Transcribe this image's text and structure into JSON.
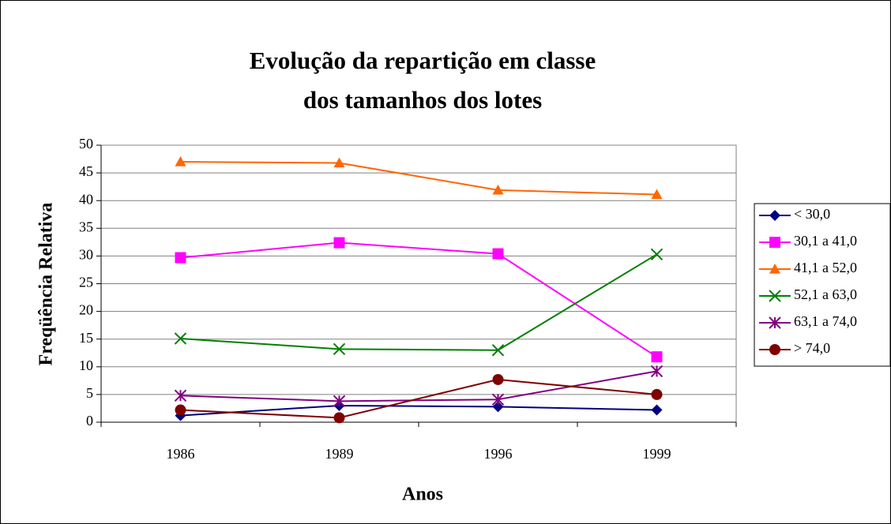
{
  "chart_data": {
    "type": "line",
    "title": [
      "Evolução da repartição em classe",
      "dos tamanhos dos lotes"
    ],
    "x_label": "Anos",
    "y_label": "Freqüência Relativa",
    "categories": [
      "1986",
      "1989",
      "1996",
      "1999"
    ],
    "series": [
      {
        "name": "< 30,0",
        "color": "#000080",
        "marker": "diamond",
        "values": [
          1.2,
          3.0,
          2.8,
          2.2
        ]
      },
      {
        "name": "30,1 a 41,0",
        "color": "#ff00ff",
        "marker": "square",
        "values": [
          29.7,
          32.4,
          30.4,
          11.8
        ]
      },
      {
        "name": "41,1 a 52,0",
        "color": "#ff6600",
        "marker": "triangle",
        "values": [
          47.0,
          46.8,
          41.9,
          41.1
        ]
      },
      {
        "name": "52,1 a 63,0",
        "color": "#008000",
        "marker": "x",
        "values": [
          15.1,
          13.2,
          13.0,
          30.3
        ]
      },
      {
        "name": "63,1 a 74,0",
        "color": "#800080",
        "marker": "star",
        "values": [
          4.8,
          3.8,
          4.1,
          9.2
        ]
      },
      {
        "name": "> 74,0",
        "color": "#800000",
        "marker": "circle",
        "values": [
          2.2,
          0.8,
          7.7,
          5.0
        ]
      }
    ],
    "ylim": [
      0,
      50
    ],
    "yticks": [
      0,
      5,
      10,
      15,
      20,
      25,
      30,
      35,
      40,
      45,
      50
    ],
    "grid": true,
    "legend": "right"
  }
}
